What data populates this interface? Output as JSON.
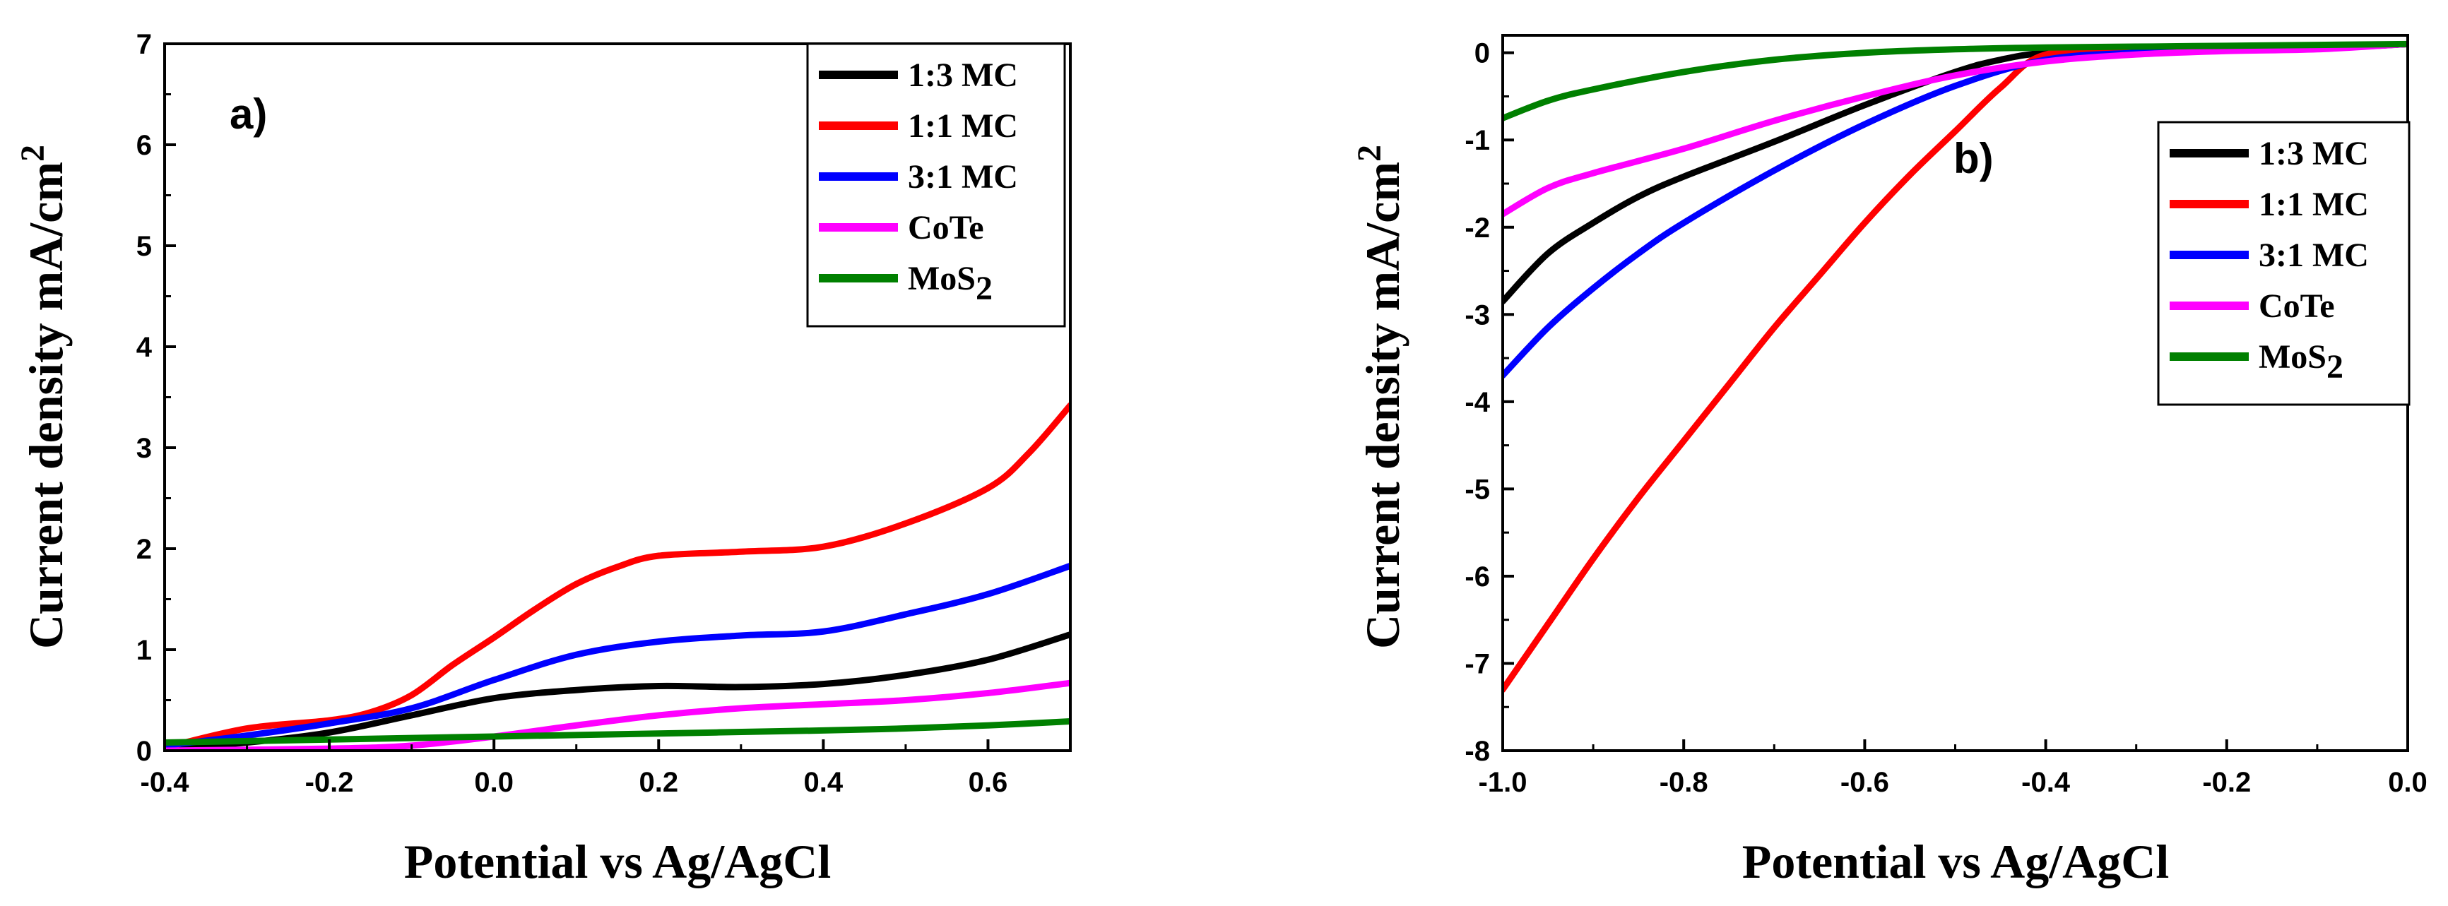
{
  "chart_data": [
    {
      "type": "line",
      "panel_label": "a)",
      "xlabel": "Potential vs Ag/AgCl",
      "ylabel_main": "Current density mA/cm",
      "ylabel_sup": "2",
      "xlim": [
        -0.4,
        0.7
      ],
      "ylim": [
        0,
        7
      ],
      "x_ticks": [
        -0.4,
        -0.2,
        0.0,
        0.2,
        0.4,
        0.6
      ],
      "x_tick_labels": [
        "-0.4",
        "-0.2",
        "0.0",
        "0.2",
        "0.4",
        "0.6"
      ],
      "y_ticks": [
        0,
        1,
        2,
        3,
        4,
        5,
        6,
        7
      ],
      "y_tick_labels": [
        "0",
        "1",
        "2",
        "3",
        "4",
        "5",
        "6",
        "7"
      ],
      "grid": false,
      "legend_position": "top-right",
      "series": [
        {
          "name": "1:3 MC",
          "color": "#000000",
          "x": [
            -0.4,
            -0.3,
            -0.2,
            -0.1,
            0.0,
            0.1,
            0.2,
            0.3,
            0.4,
            0.5,
            0.6,
            0.7
          ],
          "y": [
            0.02,
            0.08,
            0.18,
            0.35,
            0.52,
            0.6,
            0.64,
            0.63,
            0.66,
            0.75,
            0.9,
            1.15
          ]
        },
        {
          "name": "1:1 MC",
          "color": "#ff0000",
          "x": [
            -0.4,
            -0.3,
            -0.2,
            -0.15,
            -0.1,
            -0.05,
            0.0,
            0.05,
            0.1,
            0.15,
            0.2,
            0.3,
            0.4,
            0.5,
            0.6,
            0.65,
            0.7
          ],
          "y": [
            0.03,
            0.22,
            0.3,
            0.38,
            0.55,
            0.85,
            1.12,
            1.4,
            1.65,
            1.82,
            1.93,
            1.97,
            2.02,
            2.25,
            2.6,
            2.95,
            3.42
          ]
        },
        {
          "name": "3:1 MC",
          "color": "#0000ff",
          "x": [
            -0.4,
            -0.3,
            -0.2,
            -0.1,
            0.0,
            0.1,
            0.2,
            0.3,
            0.4,
            0.5,
            0.6,
            0.7
          ],
          "y": [
            0.05,
            0.15,
            0.27,
            0.42,
            0.7,
            0.95,
            1.08,
            1.14,
            1.18,
            1.35,
            1.55,
            1.83
          ]
        },
        {
          "name": "CoTe",
          "color": "#ff00ff",
          "x": [
            -0.4,
            -0.2,
            -0.1,
            0.0,
            0.1,
            0.2,
            0.3,
            0.4,
            0.5,
            0.6,
            0.7
          ],
          "y": [
            0.0,
            0.02,
            0.05,
            0.14,
            0.25,
            0.35,
            0.42,
            0.46,
            0.5,
            0.57,
            0.67
          ]
        },
        {
          "name": "MoS2",
          "color": "#008000",
          "x": [
            -0.4,
            -0.2,
            0.0,
            0.2,
            0.4,
            0.5,
            0.6,
            0.7
          ],
          "y": [
            0.08,
            0.11,
            0.14,
            0.17,
            0.2,
            0.22,
            0.25,
            0.29
          ]
        }
      ]
    },
    {
      "type": "line",
      "panel_label": "b)",
      "xlabel": "Potential vs Ag/AgCl",
      "ylabel_main": "Current density mA/cm",
      "ylabel_sup": "2",
      "xlim": [
        -1.0,
        0.0
      ],
      "ylim": [
        -8,
        0.2
      ],
      "x_ticks": [
        -1.0,
        -0.8,
        -0.6,
        -0.4,
        -0.2,
        0.0
      ],
      "x_tick_labels": [
        "-1.0",
        "-0.8",
        "-0.6",
        "-0.4",
        "-0.2",
        "0.0"
      ],
      "y_ticks": [
        0,
        -1,
        -2,
        -3,
        -4,
        -5,
        -6,
        -7,
        -8
      ],
      "y_tick_labels": [
        "0",
        "-1",
        "-2",
        "-3",
        "-4",
        "-5",
        "-6",
        "-7",
        "-8"
      ],
      "grid": false,
      "legend_position": "right",
      "series": [
        {
          "name": "1:3 MC",
          "color": "#000000",
          "x": [
            -1.0,
            -0.95,
            -0.9,
            -0.85,
            -0.8,
            -0.7,
            -0.6,
            -0.5,
            -0.45,
            -0.4,
            -0.3,
            -0.2,
            -0.1,
            0.0
          ],
          "y": [
            -2.85,
            -2.3,
            -1.95,
            -1.65,
            -1.42,
            -1.02,
            -0.6,
            -0.22,
            -0.08,
            0.0,
            0.05,
            0.05,
            0.05,
            0.1
          ]
        },
        {
          "name": "1:1 MC",
          "color": "#ff0000",
          "x": [
            -1.0,
            -0.95,
            -0.9,
            -0.85,
            -0.8,
            -0.75,
            -0.7,
            -0.65,
            -0.6,
            -0.55,
            -0.5,
            -0.45,
            -0.4,
            -0.3,
            -0.2,
            -0.1,
            0.0
          ],
          "y": [
            -7.3,
            -6.55,
            -5.8,
            -5.1,
            -4.45,
            -3.8,
            -3.15,
            -2.55,
            -1.95,
            -1.4,
            -0.9,
            -0.4,
            -0.02,
            0.03,
            0.04,
            0.05,
            0.1
          ]
        },
        {
          "name": "3:1 MC",
          "color": "#0000ff",
          "x": [
            -1.0,
            -0.95,
            -0.9,
            -0.85,
            -0.8,
            -0.7,
            -0.6,
            -0.5,
            -0.4,
            -0.3,
            -0.2,
            -0.1,
            0.0
          ],
          "y": [
            -3.7,
            -3.15,
            -2.7,
            -2.3,
            -1.95,
            -1.35,
            -0.82,
            -0.38,
            -0.08,
            0.0,
            0.03,
            0.05,
            0.1
          ]
        },
        {
          "name": "CoTe",
          "color": "#ff00ff",
          "x": [
            -1.0,
            -0.95,
            -0.9,
            -0.8,
            -0.7,
            -0.6,
            -0.5,
            -0.4,
            -0.3,
            -0.2,
            -0.1,
            0.0
          ],
          "y": [
            -1.85,
            -1.55,
            -1.38,
            -1.1,
            -0.78,
            -0.5,
            -0.26,
            -0.1,
            -0.02,
            0.02,
            0.04,
            0.1
          ]
        },
        {
          "name": "MoS2",
          "color": "#008000",
          "x": [
            -1.0,
            -0.95,
            -0.9,
            -0.8,
            -0.7,
            -0.6,
            -0.5,
            -0.4,
            -0.3,
            -0.2,
            -0.1,
            0.0
          ],
          "y": [
            -0.75,
            -0.55,
            -0.42,
            -0.22,
            -0.08,
            0.0,
            0.04,
            0.06,
            0.07,
            0.08,
            0.09,
            0.1
          ]
        }
      ]
    }
  ],
  "legend_labels": [
    {
      "name": "1:3 MC",
      "main": "1:3 MC",
      "sub": ""
    },
    {
      "name": "1:1 MC",
      "main": "1:1 MC",
      "sub": ""
    },
    {
      "name": "3:1 MC",
      "main": "3:1 MC",
      "sub": ""
    },
    {
      "name": "CoTe",
      "main": "CoTe",
      "sub": ""
    },
    {
      "name": "MoS2",
      "main": "MoS",
      "sub": "2"
    }
  ]
}
